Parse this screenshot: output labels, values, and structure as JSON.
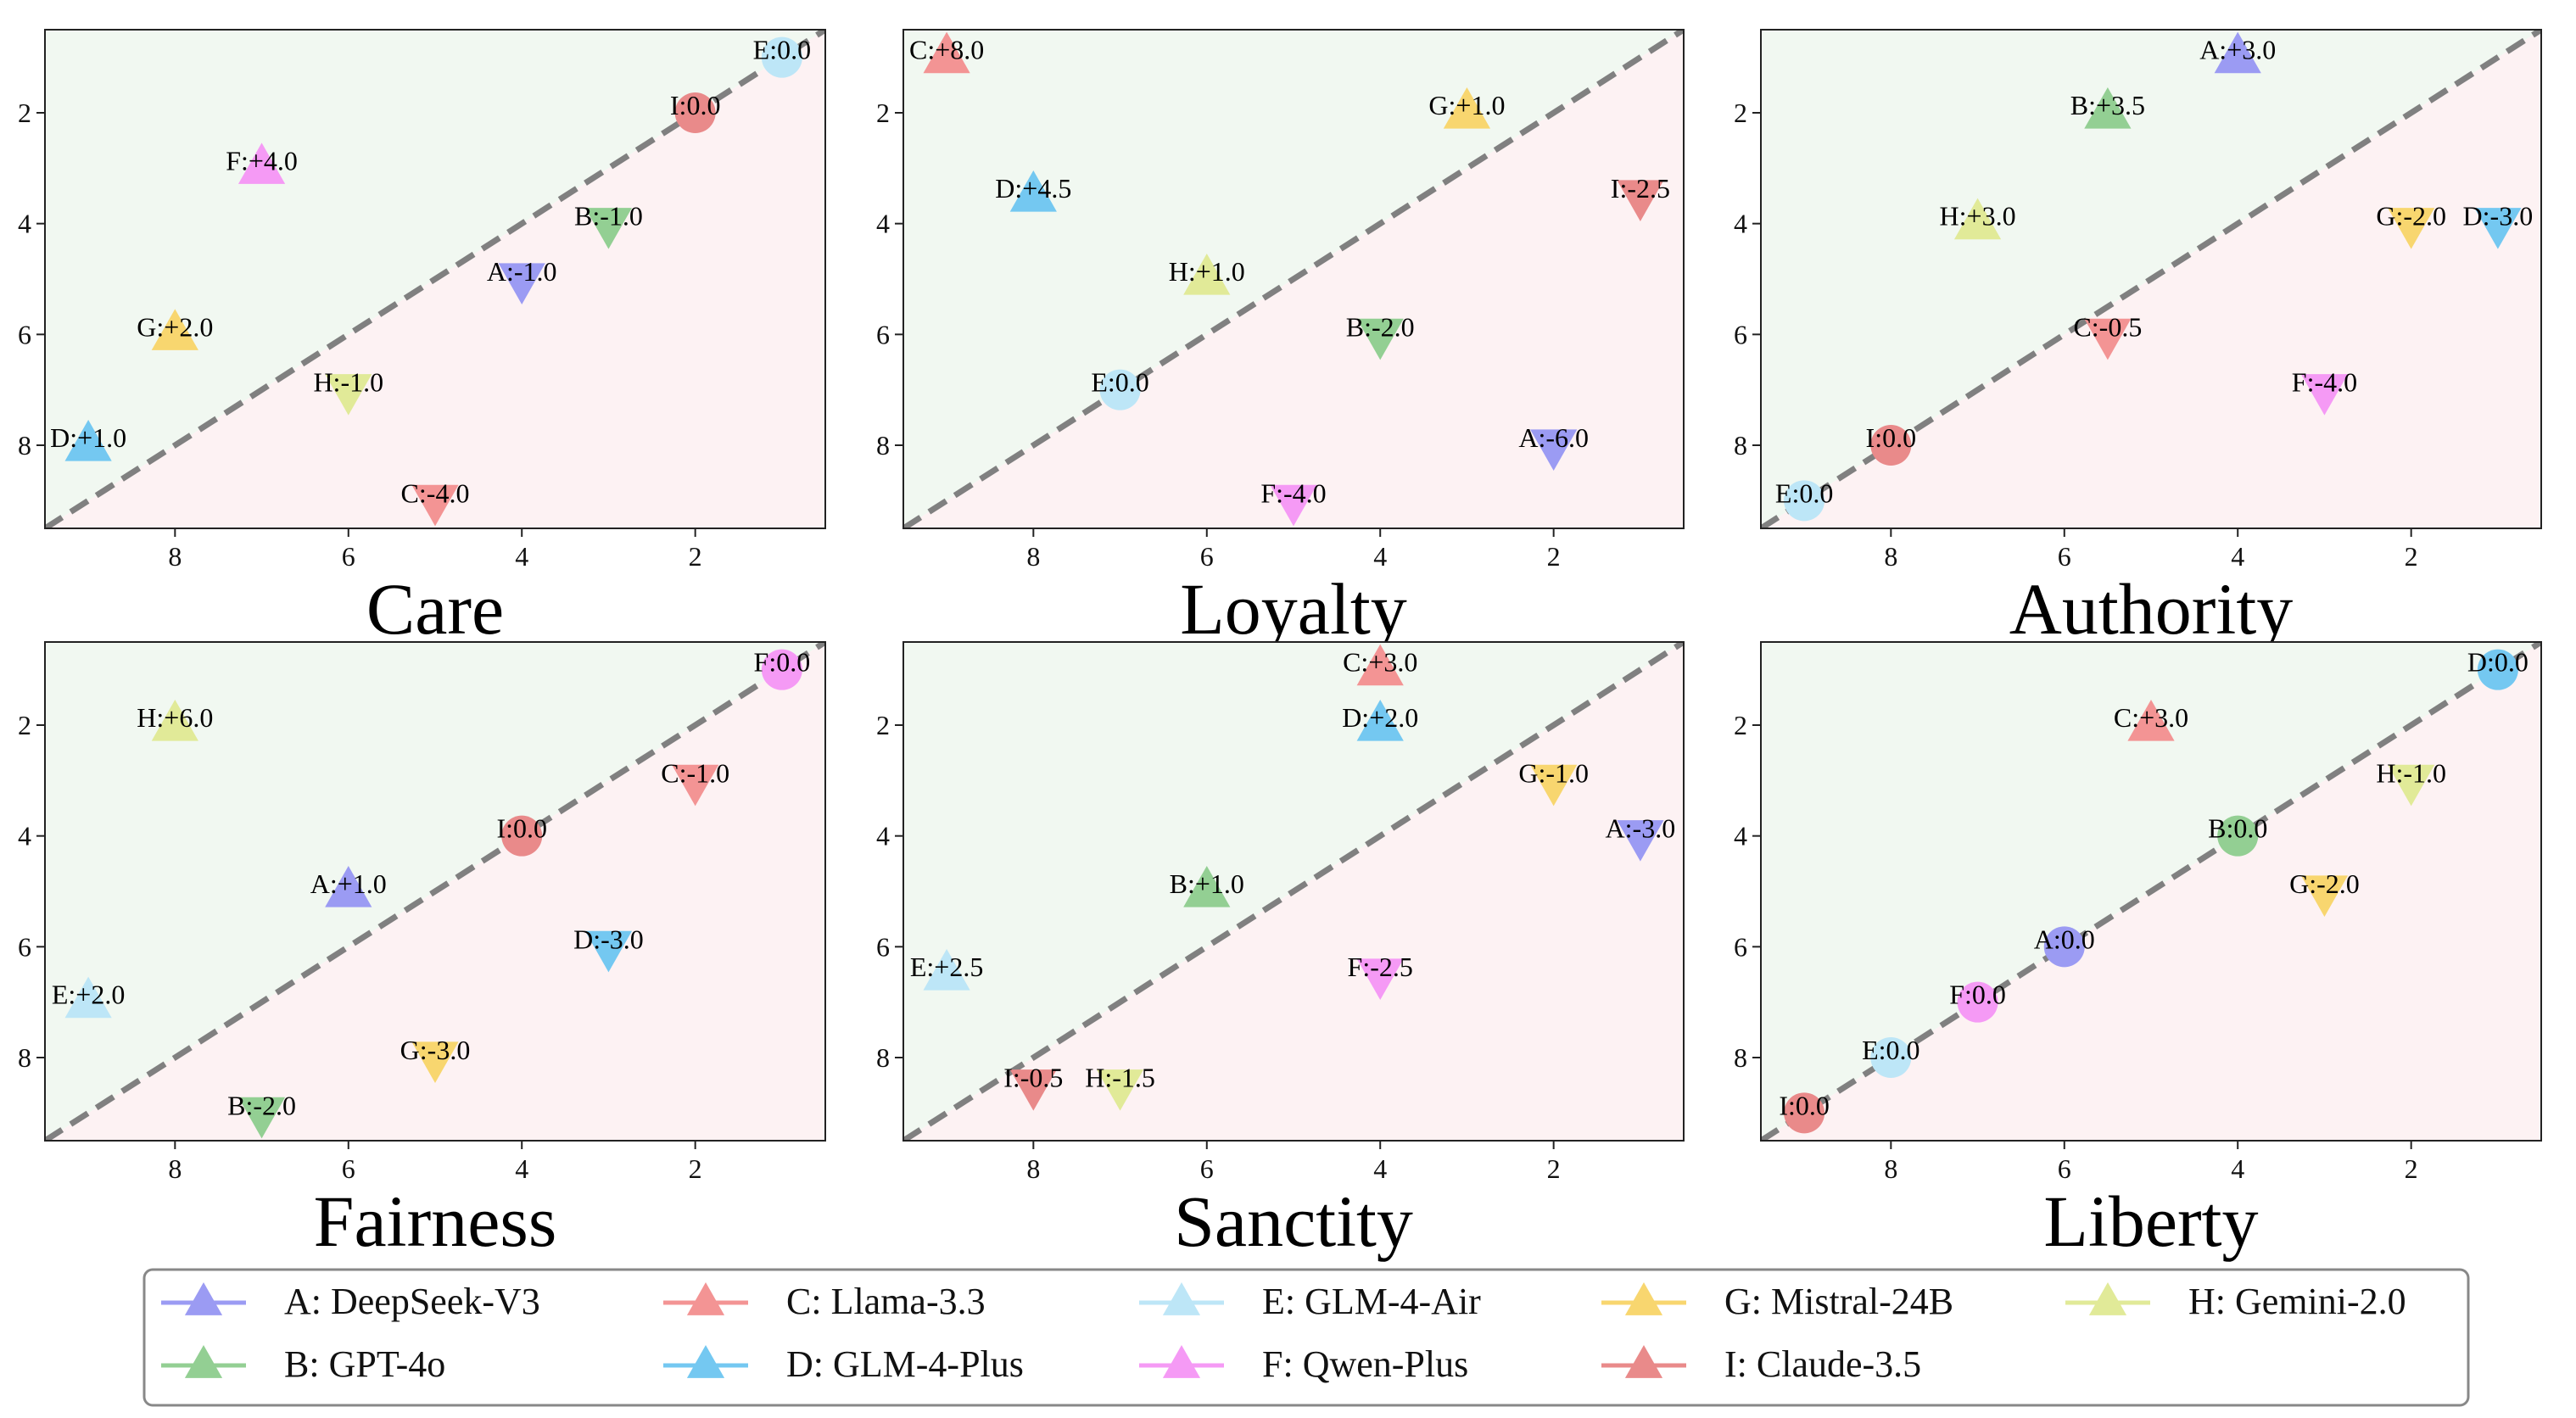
{
  "colors": {
    "A": "#9b9bf3",
    "B": "#93cf93",
    "C": "#f39494",
    "D": "#74c8f1",
    "E": "#bde6f7",
    "F": "#f59af5",
    "G": "#f8d66f",
    "H": "#e1ea98",
    "I": "#e98a8a",
    "upper_region": "#f1f8f1",
    "lower_region": "#fdf2f3",
    "diagonal": "#808080"
  },
  "legend": [
    {
      "key": "A",
      "label": "A: DeepSeek-V3"
    },
    {
      "key": "C",
      "label": "C: Llama-3.3"
    },
    {
      "key": "E",
      "label": "E: GLM-4-Air"
    },
    {
      "key": "G",
      "label": "G: Mistral-24B"
    },
    {
      "key": "H",
      "label": "H: Gemini-2.0"
    },
    {
      "key": "B",
      "label": "B: GPT-4o"
    },
    {
      "key": "D",
      "label": "D: GLM-4-Plus"
    },
    {
      "key": "F",
      "label": "F: Qwen-Plus"
    },
    {
      "key": "I",
      "label": "I: Claude-3.5"
    }
  ],
  "chart_data": [
    {
      "type": "scatter",
      "title": "Care",
      "xlim": [
        9.5,
        0.5
      ],
      "ylim": [
        9.5,
        0.5
      ],
      "xticks": [
        8,
        6,
        4,
        2
      ],
      "yticks": [
        2,
        4,
        6,
        8
      ],
      "diagonal": true,
      "points": [
        {
          "id": "A",
          "x": 4,
          "y": 5,
          "marker": "down",
          "label": "A:-1.0"
        },
        {
          "id": "B",
          "x": 3,
          "y": 4,
          "marker": "down",
          "label": "B:-1.0"
        },
        {
          "id": "C",
          "x": 5,
          "y": 9,
          "marker": "down",
          "label": "C:-4.0"
        },
        {
          "id": "D",
          "x": 9,
          "y": 8,
          "marker": "up",
          "label": "D:+1.0"
        },
        {
          "id": "E",
          "x": 1,
          "y": 1,
          "marker": "circle",
          "label": "E:0.0"
        },
        {
          "id": "F",
          "x": 7,
          "y": 3,
          "marker": "up",
          "label": "F:+4.0"
        },
        {
          "id": "G",
          "x": 8,
          "y": 6,
          "marker": "up",
          "label": "G:+2.0"
        },
        {
          "id": "H",
          "x": 6,
          "y": 7,
          "marker": "down",
          "label": "H:-1.0"
        },
        {
          "id": "I",
          "x": 2,
          "y": 2,
          "marker": "circle",
          "label": "I:0.0"
        }
      ]
    },
    {
      "type": "scatter",
      "title": "Loyalty",
      "xlim": [
        9.5,
        0.5
      ],
      "ylim": [
        9.5,
        0.5
      ],
      "xticks": [
        8,
        6,
        4,
        2
      ],
      "yticks": [
        2,
        4,
        6,
        8
      ],
      "diagonal": true,
      "points": [
        {
          "id": "A",
          "x": 2,
          "y": 8,
          "marker": "down",
          "label": "A:-6.0"
        },
        {
          "id": "B",
          "x": 4,
          "y": 6,
          "marker": "down",
          "label": "B:-2.0"
        },
        {
          "id": "C",
          "x": 9,
          "y": 1,
          "marker": "up",
          "label": "C:+8.0"
        },
        {
          "id": "D",
          "x": 8,
          "y": 3.5,
          "marker": "up",
          "label": "D:+4.5"
        },
        {
          "id": "E",
          "x": 7,
          "y": 7,
          "marker": "circle",
          "label": "E:0.0"
        },
        {
          "id": "F",
          "x": 5,
          "y": 9,
          "marker": "down",
          "label": "F:-4.0"
        },
        {
          "id": "G",
          "x": 3,
          "y": 2,
          "marker": "up",
          "label": "G:+1.0"
        },
        {
          "id": "H",
          "x": 6,
          "y": 5,
          "marker": "up",
          "label": "H:+1.0"
        },
        {
          "id": "I",
          "x": 1,
          "y": 3.5,
          "marker": "down",
          "label": "I:-2.5"
        }
      ]
    },
    {
      "type": "scatter",
      "title": "Authority",
      "xlim": [
        9.5,
        0.5
      ],
      "ylim": [
        9.5,
        0.5
      ],
      "xticks": [
        8,
        6,
        4,
        2
      ],
      "yticks": [
        2,
        4,
        6,
        8
      ],
      "diagonal": true,
      "points": [
        {
          "id": "A",
          "x": 4,
          "y": 1,
          "marker": "up",
          "label": "A:+3.0"
        },
        {
          "id": "B",
          "x": 5.5,
          "y": 2,
          "marker": "up",
          "label": "B:+3.5"
        },
        {
          "id": "C",
          "x": 5.5,
          "y": 6,
          "marker": "down",
          "label": "C:-0.5"
        },
        {
          "id": "D",
          "x": 1,
          "y": 4,
          "marker": "down",
          "label": "D:-3.0"
        },
        {
          "id": "E",
          "x": 9,
          "y": 9,
          "marker": "circle",
          "label": "E:0.0"
        },
        {
          "id": "F",
          "x": 3,
          "y": 7,
          "marker": "down",
          "label": "F:-4.0"
        },
        {
          "id": "G",
          "x": 2,
          "y": 4,
          "marker": "down",
          "label": "G:-2.0"
        },
        {
          "id": "H",
          "x": 7,
          "y": 4,
          "marker": "up",
          "label": "H:+3.0"
        },
        {
          "id": "I",
          "x": 8,
          "y": 8,
          "marker": "circle",
          "label": "I:0.0"
        }
      ]
    },
    {
      "type": "scatter",
      "title": "Fairness",
      "xlim": [
        9.5,
        0.5
      ],
      "ylim": [
        9.5,
        0.5
      ],
      "xticks": [
        8,
        6,
        4,
        2
      ],
      "yticks": [
        2,
        4,
        6,
        8
      ],
      "diagonal": true,
      "points": [
        {
          "id": "A",
          "x": 6,
          "y": 5,
          "marker": "up",
          "label": "A:+1.0"
        },
        {
          "id": "B",
          "x": 7,
          "y": 9,
          "marker": "down",
          "label": "B:-2.0"
        },
        {
          "id": "C",
          "x": 2,
          "y": 3,
          "marker": "down",
          "label": "C:-1.0"
        },
        {
          "id": "D",
          "x": 3,
          "y": 6,
          "marker": "down",
          "label": "D:-3.0"
        },
        {
          "id": "E",
          "x": 9,
          "y": 7,
          "marker": "up",
          "label": "E:+2.0"
        },
        {
          "id": "F",
          "x": 1,
          "y": 1,
          "marker": "circle",
          "label": "F:0.0"
        },
        {
          "id": "G",
          "x": 5,
          "y": 8,
          "marker": "down",
          "label": "G:-3.0"
        },
        {
          "id": "H",
          "x": 8,
          "y": 2,
          "marker": "up",
          "label": "H:+6.0"
        },
        {
          "id": "I",
          "x": 4,
          "y": 4,
          "marker": "circle",
          "label": "I:0.0"
        }
      ]
    },
    {
      "type": "scatter",
      "title": "Sanctity",
      "xlim": [
        9.5,
        0.5
      ],
      "ylim": [
        9.5,
        0.5
      ],
      "xticks": [
        8,
        6,
        4,
        2
      ],
      "yticks": [
        2,
        4,
        6,
        8
      ],
      "diagonal": true,
      "points": [
        {
          "id": "A",
          "x": 1,
          "y": 4,
          "marker": "down",
          "label": "A:-3.0"
        },
        {
          "id": "B",
          "x": 6,
          "y": 5,
          "marker": "up",
          "label": "B:+1.0"
        },
        {
          "id": "C",
          "x": 4,
          "y": 1,
          "marker": "up",
          "label": "C:+3.0"
        },
        {
          "id": "D",
          "x": 4,
          "y": 2,
          "marker": "up",
          "label": "D:+2.0"
        },
        {
          "id": "E",
          "x": 9,
          "y": 6.5,
          "marker": "up",
          "label": "E:+2.5"
        },
        {
          "id": "F",
          "x": 4,
          "y": 6.5,
          "marker": "down",
          "label": "F:-2.5"
        },
        {
          "id": "G",
          "x": 2,
          "y": 3,
          "marker": "down",
          "label": "G:-1.0"
        },
        {
          "id": "H",
          "x": 7,
          "y": 8.5,
          "marker": "down",
          "label": "H:-1.5"
        },
        {
          "id": "I",
          "x": 8,
          "y": 8.5,
          "marker": "down",
          "label": "I:-0.5"
        }
      ]
    },
    {
      "type": "scatter",
      "title": "Liberty",
      "xlim": [
        9.5,
        0.5
      ],
      "ylim": [
        9.5,
        0.5
      ],
      "xticks": [
        8,
        6,
        4,
        2
      ],
      "yticks": [
        2,
        4,
        6,
        8
      ],
      "diagonal": true,
      "points": [
        {
          "id": "A",
          "x": 6,
          "y": 6,
          "marker": "circle",
          "label": "A:0.0"
        },
        {
          "id": "B",
          "x": 4,
          "y": 4,
          "marker": "circle",
          "label": "B:0.0"
        },
        {
          "id": "C",
          "x": 5,
          "y": 2,
          "marker": "up",
          "label": "C:+3.0"
        },
        {
          "id": "D",
          "x": 1,
          "y": 1,
          "marker": "circle",
          "label": "D:0.0"
        },
        {
          "id": "E",
          "x": 8,
          "y": 8,
          "marker": "circle",
          "label": "E:0.0"
        },
        {
          "id": "F",
          "x": 7,
          "y": 7,
          "marker": "circle",
          "label": "F:0.0"
        },
        {
          "id": "G",
          "x": 3,
          "y": 5,
          "marker": "down",
          "label": "G:-2.0"
        },
        {
          "id": "H",
          "x": 2,
          "y": 3,
          "marker": "down",
          "label": "H:-1.0"
        },
        {
          "id": "I",
          "x": 9,
          "y": 9,
          "marker": "circle",
          "label": "I:0.0"
        }
      ]
    }
  ]
}
